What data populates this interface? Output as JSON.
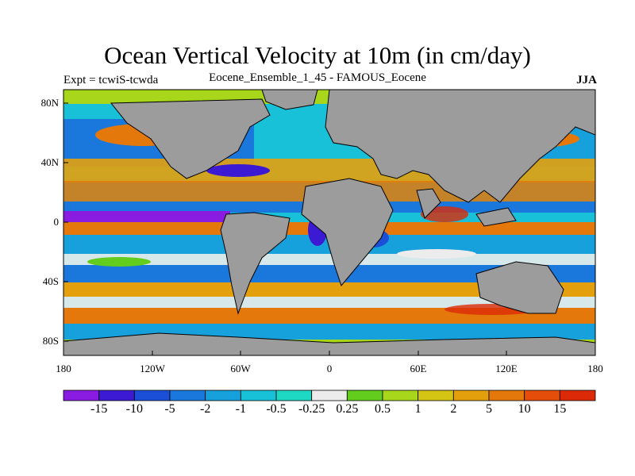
{
  "title": "Ocean Vertical Velocity at 10m (in cm/day)",
  "subtitle_left": "Expt = tcwiS-tcwda",
  "subtitle_center": "Eocene_Ensemble_1_45 - FAMOUS_Eocene",
  "subtitle_right": "JJA",
  "lat_ticks": [
    "80N",
    "40N",
    "0",
    "40S",
    "80S"
  ],
  "lon_ticks": [
    "180",
    "120W",
    "60W",
    "0",
    "60E",
    "120E",
    "180"
  ],
  "colorbar": {
    "labels": [
      "-15",
      "-10",
      "-5",
      "-2",
      "-1",
      "-0.5",
      "-0.25",
      "0.25",
      "0.5",
      "1",
      "2",
      "5",
      "10",
      "15"
    ],
    "colors": [
      "#8a1be0",
      "#3c19d2",
      "#1c4fd8",
      "#1a78dc",
      "#16a0dc",
      "#18c0d8",
      "#1ed8c4",
      "#ececec",
      "#62cd1c",
      "#a8d61a",
      "#d4c414",
      "#e4a00c",
      "#e4780a",
      "#e44e0a",
      "#dc2a08"
    ]
  },
  "colors": {
    "land": "#9c9c9c",
    "background": "#ffffff",
    "coastline": "#000000"
  }
}
